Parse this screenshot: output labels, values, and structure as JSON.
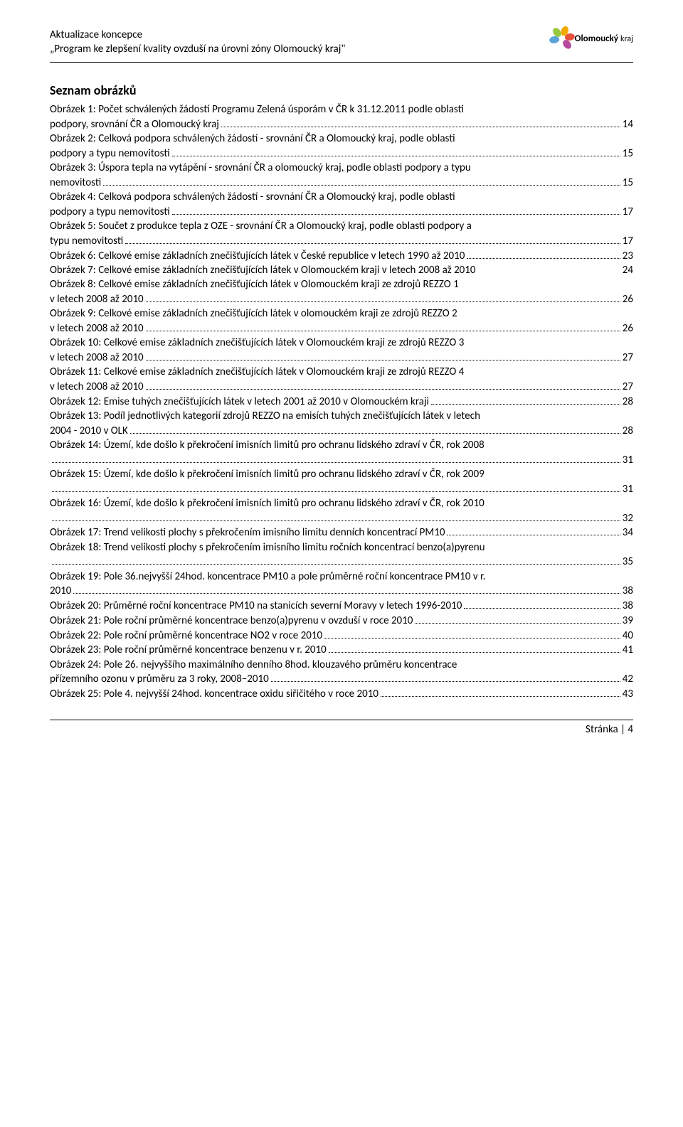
{
  "header": {
    "line1": "Aktualizace koncepce",
    "line2": "„Program ke zlepšení kvality ovzduší na úrovni zóny Olomoucký kraj\"",
    "logo_main": "Olomoucký",
    "logo_sub": "kraj"
  },
  "section_title": "Seznam obrázků",
  "entries": [
    {
      "pre": "Obrázek 1: Počet schválených žádostí Programu Zelená úsporám v ČR k 31.12.2011 podle oblasti",
      "last": "podpory, srovnání ČR a Olomoucký kraj",
      "page": "14"
    },
    {
      "pre": "Obrázek 2: Celková podpora schválených žádostí - srovnání ČR a Olomoucký kraj, podle oblasti",
      "last": "podpory a typu nemovitosti",
      "page": "15"
    },
    {
      "pre": "Obrázek 3: Úspora tepla na vytápění - srovnání ČR a olomoucký kraj, podle oblasti podpory a typu",
      "last": "nemovitosti",
      "page": "15"
    },
    {
      "pre": "Obrázek 4: Celková podpora schválených žádostí - srovnání ČR a Olomoucký kraj, podle oblasti",
      "last": "podpory a typu nemovitosti",
      "page": "17"
    },
    {
      "pre": "Obrázek 5: Součet z produkce tepla z OZE - srovnání ČR a Olomoucký kraj, podle oblasti podpory a",
      "last": "typu nemovitosti",
      "page": "17"
    },
    {
      "pre": "",
      "last": "Obrázek 6: Celkové emise základních znečišťujících látek v České republice v letech 1990 až 2010",
      "page": "23"
    },
    {
      "pre": "",
      "last": "Obrázek 7: Celkové emise základních znečišťujících látek v Olomouckém kraji v letech 2008 až 2010",
      "page": "24",
      "nodots": true
    },
    {
      "pre": "Obrázek 8: Celkové emise základních znečišťujících látek v Olomouckém kraji ze zdrojů REZZO 1",
      "last": "v letech 2008 až 2010",
      "page": "26"
    },
    {
      "pre": "Obrázek 9: Celkové emise základních znečišťujících látek v olomouckém kraji ze zdrojů REZZO 2",
      "last": "v letech 2008 až 2010",
      "page": "26"
    },
    {
      "pre": "Obrázek 10: Celkové emise základních znečišťujících látek v Olomouckém kraji ze zdrojů REZZO 3",
      "last": "v letech 2008 až 2010",
      "page": "27"
    },
    {
      "pre": "Obrázek 11: Celkové emise základních znečišťujících látek v Olomouckém kraji ze zdrojů REZZO 4",
      "last": "v letech 2008 až 2010",
      "page": "27"
    },
    {
      "pre": "",
      "last": "Obrázek 12: Emise tuhých znečišťujících látek v letech 2001 až 2010 v Olomouckém kraji",
      "page": "28"
    },
    {
      "pre": "Obrázek 13: Podíl jednotlivých kategorií zdrojů REZZO na emisích tuhých znečišťujících látek v letech",
      "last": "2004 - 2010 v OLK",
      "page": "28"
    },
    {
      "pre": "Obrázek 14: Území, kde došlo k překročení imisních limitů pro ochranu lidského zdraví v ČR, rok 2008",
      "last": "",
      "page": "31"
    },
    {
      "pre": "Obrázek 15: Území, kde došlo k překročení imisních limitů pro ochranu lidského zdraví v ČR, rok 2009",
      "last": "",
      "page": "31"
    },
    {
      "pre": "Obrázek 16: Území, kde došlo k překročení imisních limitů pro ochranu lidského zdraví v ČR, rok 2010",
      "last": "",
      "page": "32"
    },
    {
      "pre": "",
      "last": "Obrázek 17: Trend velikosti plochy s překročením imisního limitu denních koncentrací PM10",
      "page": "34"
    },
    {
      "pre": "Obrázek 18: Trend velikosti plochy s překročením imisního limitu ročních koncentrací benzo(a)pyrenu",
      "last": "",
      "page": "35"
    },
    {
      "pre": "Obrázek 19: Pole 36.nejvyšší 24hod. koncentrace PM10 a pole průměrné roční koncentrace PM10 v r.",
      "last": "2010",
      "page": "38"
    },
    {
      "pre": "",
      "last": "Obrázek 20: Průměrné roční koncentrace PM10 na stanicích severní Moravy v letech 1996-2010",
      "page": "38"
    },
    {
      "pre": "",
      "last": "Obrázek 21: Pole roční průměrné koncentrace benzo(a)pyrenu v ovzduší v roce 2010",
      "page": "39"
    },
    {
      "pre": "",
      "last": "Obrázek 22: Pole roční průměrné koncentrace NO2 v roce 2010",
      "page": "40"
    },
    {
      "pre": "",
      "last": "Obrázek 23: Pole roční průměrné koncentrace benzenu v r. 2010",
      "page": "41"
    },
    {
      "pre": "Obrázek 24: Pole 26. nejvyššího maximálního denního 8hod. klouzavého průměru koncentrace",
      "last": "přízemního ozonu v průměru za 3 roky, 2008–2010",
      "page": "42"
    },
    {
      "pre": "",
      "last": "Obrázek 25: Pole 4. nejvyšší 24hod. koncentrace oxidu siřičitého v roce 2010",
      "page": "43"
    }
  ],
  "footer": "Stránka | 4",
  "logo_petals": [
    {
      "color": "#5aa3d8",
      "rot": -100
    },
    {
      "color": "#96c93d",
      "rot": -40
    },
    {
      "color": "#f2a900",
      "rot": 20
    },
    {
      "color": "#e94f3d",
      "rot": 80
    },
    {
      "color": "#b54a9f",
      "rot": 140
    }
  ]
}
